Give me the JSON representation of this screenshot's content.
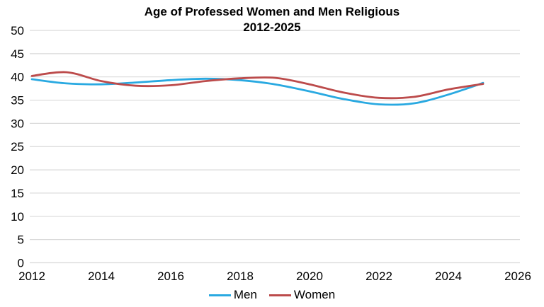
{
  "chart_data": {
    "type": "line",
    "title": "Age of Professed Women and Men Religious",
    "subtitle": "2012-2025",
    "categories": [
      2012,
      2013,
      2014,
      2015,
      2016,
      2017,
      2018,
      2019,
      2020,
      2021,
      2022,
      2023,
      2024,
      2025
    ],
    "series": [
      {
        "name": "Men",
        "color": "#29A9E1",
        "values": [
          39.5,
          38.6,
          38.4,
          38.8,
          39.3,
          39.6,
          39.3,
          38.4,
          36.9,
          35.2,
          34.1,
          34.3,
          36.2,
          38.7
        ]
      },
      {
        "name": "Women",
        "color": "#BC4B4B",
        "values": [
          40.2,
          41.0,
          39.1,
          38.1,
          38.2,
          39.1,
          39.7,
          39.8,
          38.4,
          36.6,
          35.5,
          35.7,
          37.3,
          38.5
        ]
      }
    ],
    "x_ticks": [
      2012,
      2014,
      2016,
      2018,
      2020,
      2022,
      2024,
      2026
    ],
    "y_ticks": [
      0,
      5,
      10,
      15,
      20,
      25,
      30,
      35,
      40,
      45,
      50
    ],
    "xlim": [
      2012,
      2026
    ],
    "ylim": [
      0,
      50
    ],
    "grid": "horizontal",
    "gridline_color": "#D9D9D9",
    "text_color": "#000000",
    "background": "#FFFFFF",
    "legend_position": "bottom",
    "smooth": true
  }
}
